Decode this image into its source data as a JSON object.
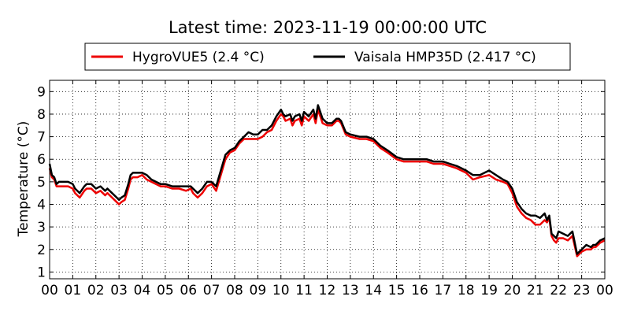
{
  "chart_data": {
    "type": "line",
    "title": "Latest time: 2023-11-19 00:00:00 UTC",
    "xlabel": "",
    "ylabel": "Temperature (°C)",
    "xlim": [
      0,
      24
    ],
    "ylim": [
      0.7,
      9.5
    ],
    "x_tick_values": [
      0,
      1,
      2,
      3,
      4,
      5,
      6,
      7,
      8,
      9,
      10,
      11,
      12,
      13,
      14,
      15,
      16,
      17,
      18,
      19,
      20,
      21,
      22,
      23,
      24
    ],
    "x_tick_labels": [
      "00",
      "01",
      "02",
      "03",
      "04",
      "05",
      "06",
      "07",
      "08",
      "09",
      "10",
      "11",
      "12",
      "13",
      "14",
      "15",
      "16",
      "17",
      "18",
      "19",
      "20",
      "21",
      "22",
      "23",
      "00"
    ],
    "y_ticks": [
      1,
      2,
      3,
      4,
      5,
      6,
      7,
      8,
      9
    ],
    "grid": true,
    "legend_position": "top",
    "x": [
      0.0,
      0.1,
      0.2,
      0.3,
      0.4,
      0.6,
      0.8,
      1.0,
      1.1,
      1.3,
      1.5,
      1.6,
      1.8,
      2.0,
      2.2,
      2.4,
      2.5,
      2.7,
      2.9,
      3.0,
      3.1,
      3.25,
      3.4,
      3.5,
      3.6,
      3.8,
      4.0,
      4.2,
      4.4,
      4.6,
      4.8,
      5.0,
      5.3,
      5.6,
      5.9,
      6.1,
      6.2,
      6.4,
      6.6,
      6.8,
      7.0,
      7.2,
      7.4,
      7.6,
      7.8,
      8.0,
      8.2,
      8.4,
      8.6,
      8.8,
      9.0,
      9.2,
      9.4,
      9.6,
      9.8,
      10.0,
      10.1,
      10.2,
      10.4,
      10.5,
      10.6,
      10.8,
      10.9,
      11.0,
      11.2,
      11.4,
      11.5,
      11.6,
      11.8,
      12.0,
      12.2,
      12.4,
      12.5,
      12.6,
      12.8,
      13.0,
      13.4,
      13.7,
      14.0,
      14.3,
      14.6,
      15.0,
      15.3,
      15.6,
      16.0,
      16.3,
      16.6,
      17.0,
      17.3,
      17.6,
      18.0,
      18.3,
      18.6,
      19.0,
      19.3,
      19.6,
      19.8,
      20.0,
      20.2,
      20.4,
      20.6,
      20.8,
      21.0,
      21.2,
      21.4,
      21.5,
      21.6,
      21.7,
      21.8,
      21.9,
      22.0,
      22.2,
      22.4,
      22.6,
      22.8,
      22.9,
      23.0,
      23.2,
      23.4,
      23.5,
      23.6,
      23.8,
      24.0
    ],
    "series": [
      {
        "name": "HygroVUE5 (2.4 °C)",
        "color": "#ee0000",
        "values": [
          5.6,
          5.2,
          5.1,
          4.8,
          4.8,
          4.8,
          4.8,
          4.7,
          4.5,
          4.3,
          4.6,
          4.7,
          4.7,
          4.5,
          4.6,
          4.4,
          4.5,
          4.3,
          4.1,
          4.0,
          4.1,
          4.2,
          4.7,
          5.1,
          5.2,
          5.2,
          5.3,
          5.1,
          5.0,
          4.9,
          4.8,
          4.8,
          4.7,
          4.7,
          4.6,
          4.7,
          4.5,
          4.3,
          4.5,
          4.8,
          4.9,
          4.6,
          5.3,
          6.0,
          6.3,
          6.4,
          6.7,
          6.9,
          6.9,
          6.9,
          6.9,
          7.0,
          7.2,
          7.3,
          7.7,
          8.0,
          7.9,
          7.7,
          7.8,
          7.5,
          7.7,
          7.8,
          7.5,
          7.9,
          7.7,
          8.0,
          7.6,
          8.2,
          7.6,
          7.5,
          7.5,
          7.7,
          7.7,
          7.6,
          7.1,
          7.0,
          6.9,
          6.9,
          6.8,
          6.5,
          6.3,
          6.0,
          5.9,
          5.9,
          5.9,
          5.9,
          5.8,
          5.8,
          5.7,
          5.6,
          5.4,
          5.1,
          5.2,
          5.3,
          5.1,
          5.0,
          4.9,
          4.5,
          3.9,
          3.6,
          3.4,
          3.3,
          3.1,
          3.1,
          3.3,
          3.2,
          3.4,
          2.6,
          2.4,
          2.3,
          2.5,
          2.5,
          2.4,
          2.6,
          1.7,
          1.8,
          1.9,
          2.0,
          2.0,
          2.1,
          2.1,
          2.3,
          2.4
        ]
      },
      {
        "name": "Vaisala HMP35D (2.417 °C)",
        "color": "#000000",
        "values": [
          5.8,
          5.3,
          5.2,
          4.9,
          5.0,
          5.0,
          5.0,
          4.9,
          4.7,
          4.5,
          4.8,
          4.9,
          4.9,
          4.7,
          4.8,
          4.6,
          4.7,
          4.5,
          4.3,
          4.2,
          4.3,
          4.4,
          4.9,
          5.3,
          5.4,
          5.4,
          5.4,
          5.3,
          5.1,
          5.0,
          4.9,
          4.9,
          4.8,
          4.8,
          4.8,
          4.8,
          4.7,
          4.5,
          4.7,
          5.0,
          5.0,
          4.8,
          5.5,
          6.2,
          6.4,
          6.5,
          6.8,
          7.0,
          7.2,
          7.1,
          7.1,
          7.3,
          7.3,
          7.5,
          7.9,
          8.2,
          8.0,
          7.9,
          8.0,
          7.7,
          7.9,
          8.0,
          7.7,
          8.1,
          7.9,
          8.2,
          7.8,
          8.4,
          7.8,
          7.6,
          7.6,
          7.8,
          7.8,
          7.7,
          7.2,
          7.1,
          7.0,
          7.0,
          6.9,
          6.6,
          6.4,
          6.1,
          6.0,
          6.0,
          6.0,
          6.0,
          5.9,
          5.9,
          5.8,
          5.7,
          5.5,
          5.3,
          5.3,
          5.5,
          5.3,
          5.1,
          5.0,
          4.7,
          4.1,
          3.8,
          3.6,
          3.5,
          3.5,
          3.4,
          3.6,
          3.3,
          3.5,
          2.7,
          2.6,
          2.5,
          2.8,
          2.7,
          2.6,
          2.8,
          1.8,
          1.9,
          2.0,
          2.2,
          2.1,
          2.2,
          2.2,
          2.4,
          2.5
        ]
      }
    ]
  }
}
